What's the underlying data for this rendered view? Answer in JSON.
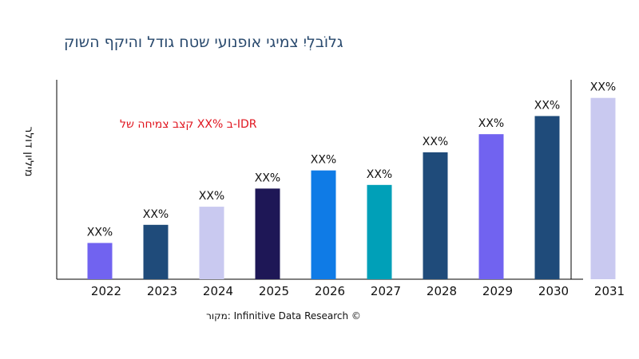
{
  "chart_data": {
    "type": "bar",
    "title": "קושה ףקיהו לדוג חטש יעונפוא יגימצ יִלְבוֹלג",
    "ylabel": "רלוד ןוילימ",
    "xlabel": "",
    "annotation": "לש החימצ בצק XX% ב-IDR",
    "source": "רוקמ: Infinitive Data Research ©",
    "categories": [
      "2022",
      "2023",
      "2024",
      "2025",
      "2026",
      "2027",
      "2028",
      "2029",
      "2030",
      "2031"
    ],
    "values": [
      2,
      3,
      4,
      5,
      6,
      5.2,
      7,
      8,
      9,
      10
    ],
    "data_labels": [
      "XX%",
      "XX%",
      "XX%",
      "XX%",
      "XX%",
      "XX%",
      "XX%",
      "XX%",
      "XX%",
      "XX%"
    ],
    "colors": [
      "#7163f0",
      "#1f4b7a",
      "#c9c9f0",
      "#1e1756",
      "#0f7be6",
      "#00a0b8",
      "#1f4b7a",
      "#7163f0",
      "#1f4b7a",
      "#c9c9f0"
    ],
    "ylim": [
      0,
      11
    ],
    "grid": false,
    "title_color": "#2a4a6e",
    "annotation_color": "#e0141e"
  }
}
